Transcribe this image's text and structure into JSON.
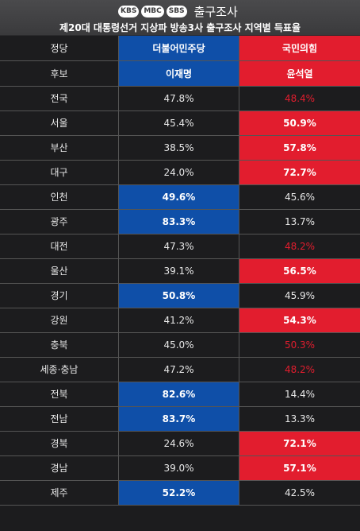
{
  "header": {
    "logos": [
      "KBS",
      "MBC",
      "SBS"
    ],
    "title": "출구조사",
    "subtitle": "제20대 대통령선거 지상파 방송3사 출구조사 지역별 득표율"
  },
  "table": {
    "party_label": "정당",
    "candidate_label": "후보",
    "parties": [
      "더불어민주당",
      "국민의힘"
    ],
    "candidates": [
      "이재명",
      "윤석열"
    ],
    "rows": [
      {
        "region": "전국",
        "a": "47.8%",
        "b": "48.4%",
        "win": "b_text"
      },
      {
        "region": "서울",
        "a": "45.4%",
        "b": "50.9%",
        "win": "b"
      },
      {
        "region": "부산",
        "a": "38.5%",
        "b": "57.8%",
        "win": "b"
      },
      {
        "region": "대구",
        "a": "24.0%",
        "b": "72.7%",
        "win": "b"
      },
      {
        "region": "인천",
        "a": "49.6%",
        "b": "45.6%",
        "win": "a"
      },
      {
        "region": "광주",
        "a": "83.3%",
        "b": "13.7%",
        "win": "a"
      },
      {
        "region": "대전",
        "a": "47.3%",
        "b": "48.2%",
        "win": "b_text"
      },
      {
        "region": "울산",
        "a": "39.1%",
        "b": "56.5%",
        "win": "b"
      },
      {
        "region": "경기",
        "a": "50.8%",
        "b": "45.9%",
        "win": "a"
      },
      {
        "region": "강원",
        "a": "41.2%",
        "b": "54.3%",
        "win": "b"
      },
      {
        "region": "충북",
        "a": "45.0%",
        "b": "50.3%",
        "win": "b_text"
      },
      {
        "region": "세종·충남",
        "a": "47.2%",
        "b": "48.2%",
        "win": "b_text"
      },
      {
        "region": "전북",
        "a": "82.6%",
        "b": "14.4%",
        "win": "a"
      },
      {
        "region": "전남",
        "a": "83.7%",
        "b": "13.3%",
        "win": "a"
      },
      {
        "region": "경북",
        "a": "24.6%",
        "b": "72.1%",
        "win": "b"
      },
      {
        "region": "경남",
        "a": "39.0%",
        "b": "57.1%",
        "win": "b"
      },
      {
        "region": "제주",
        "a": "52.2%",
        "b": "42.5%",
        "win": "a"
      }
    ]
  },
  "colors": {
    "blue": "#0f4fa8",
    "red": "#e21d2e",
    "background": "#1c1c1e",
    "header_bg": "#3a3a3c"
  }
}
